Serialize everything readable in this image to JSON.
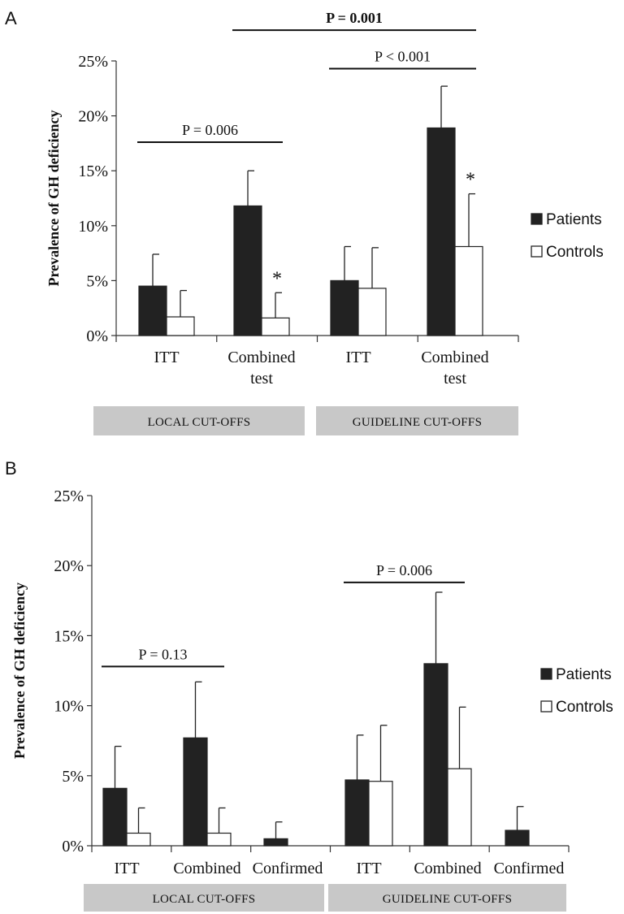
{
  "chart_data": [
    {
      "panel": "A",
      "type": "bar",
      "ylabel": "Prevalence of GH deficiency",
      "ylim": [
        0,
        25
      ],
      "y_ticks": [
        "0%",
        "5%",
        "10%",
        "15%",
        "20%",
        "25%"
      ],
      "grid": false,
      "legend_position": "right",
      "categories": [
        "ITT",
        "Combined test",
        "ITT",
        "Combined test"
      ],
      "category_lines": [
        [
          "ITT"
        ],
        [
          "Combined",
          "test"
        ],
        [
          "ITT"
        ],
        [
          "Combined",
          "test"
        ]
      ],
      "groups": [
        {
          "label": "LOCAL CUT-OFFS",
          "categories": [
            0,
            1
          ]
        },
        {
          "label": "GUIDELINE CUT-OFFS",
          "categories": [
            2,
            3
          ]
        }
      ],
      "series": [
        {
          "name": "Patients",
          "color": "#222222",
          "values": [
            4.5,
            11.8,
            5.0,
            18.9
          ],
          "error": [
            2.9,
            3.2,
            3.1,
            3.8
          ]
        },
        {
          "name": "Controls",
          "color": "#ffffff",
          "values": [
            1.7,
            1.6,
            4.3,
            8.1
          ],
          "error": [
            2.4,
            2.3,
            3.7,
            4.8
          ]
        }
      ],
      "annotations": [
        {
          "text": "P = 0.006",
          "bold": false,
          "from": 0,
          "to": 1,
          "level": 17.6
        },
        {
          "text": "P < 0.001",
          "bold": false,
          "from": 2,
          "to": 3,
          "level": 24.3
        },
        {
          "text": "P = 0.001",
          "bold": true,
          "from": 1,
          "to": 3,
          "level": 27.8
        }
      ],
      "stars": [
        {
          "text": "*",
          "category": 1
        },
        {
          "text": "*",
          "category": 3
        }
      ]
    },
    {
      "panel": "B",
      "type": "bar",
      "ylabel": "Prevalence of GH deficiency",
      "ylim": [
        0,
        25
      ],
      "y_ticks": [
        "0%",
        "5%",
        "10%",
        "15%",
        "20%",
        "25%"
      ],
      "grid": false,
      "legend_position": "right",
      "categories": [
        "ITT",
        "Combined",
        "Confirmed",
        "ITT",
        "Combined",
        "Confirmed"
      ],
      "category_lines": [
        [
          "ITT"
        ],
        [
          "Combined"
        ],
        [
          "Confirmed"
        ],
        [
          "ITT"
        ],
        [
          "Combined"
        ],
        [
          "Confirmed"
        ]
      ],
      "groups": [
        {
          "label": "LOCAL CUT-OFFS",
          "categories": [
            0,
            1,
            2
          ]
        },
        {
          "label": "GUIDELINE CUT-OFFS",
          "categories": [
            3,
            4,
            5
          ]
        }
      ],
      "series": [
        {
          "name": "Patients",
          "color": "#222222",
          "values": [
            4.1,
            7.7,
            0.5,
            4.7,
            13.0,
            1.1
          ],
          "error": [
            3.0,
            4.0,
            1.2,
            3.2,
            5.1,
            1.7
          ]
        },
        {
          "name": "Controls",
          "color": "#ffffff",
          "values": [
            0.9,
            0.9,
            0,
            4.6,
            5.5,
            0
          ],
          "error": [
            1.8,
            1.8,
            0,
            4.0,
            4.4,
            0
          ]
        }
      ],
      "annotations": [
        {
          "text": "P = 0.13",
          "bold": false,
          "from": 0,
          "to": 1,
          "level": 12.8
        },
        {
          "text": "P = 0.006",
          "bold": false,
          "from": 3,
          "to": 4,
          "level": 18.8
        }
      ],
      "stars": []
    }
  ]
}
